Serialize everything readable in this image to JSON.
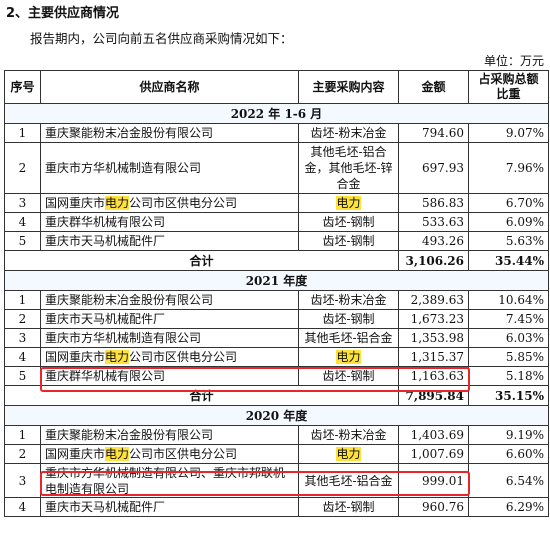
{
  "heading": "2、主要供应商情况",
  "intro": "报告期内，公司向前五名供应商采购情况如下：",
  "unit": "单位：万元",
  "headers": [
    "序号",
    "供应商名称",
    "主要采购内容",
    "金额",
    "占采购总额比重"
  ],
  "sections": [
    {
      "title": "2022 年 1-6 月",
      "rows": [
        {
          "no": "1",
          "name": "重庆聚能粉末冶金股份有限公司",
          "content": "齿坯-粉末冶金",
          "amount": "794.60",
          "ratio": "9.07%"
        },
        {
          "no": "2",
          "name": "重庆市方华机械制造有限公司",
          "content": "其他毛坯-铝合金，其他毛坯-锌合金",
          "amount": "697.93",
          "ratio": "7.96%"
        },
        {
          "no": "3",
          "name_parts": [
            "国网重庆市",
            "电力",
            "公司市区供电分公司"
          ],
          "content": "电力",
          "amount": "586.83",
          "ratio": "6.70%"
        },
        {
          "no": "4",
          "name": "重庆群华机械有限公司",
          "content": "齿坯-钢制",
          "amount": "533.63",
          "ratio": "6.09%"
        },
        {
          "no": "5",
          "name": "重庆市天马机械配件厂",
          "content": "齿坯-钢制",
          "amount": "493.26",
          "ratio": "5.63%"
        }
      ],
      "total": {
        "label": "合计",
        "amount": "3,106.26",
        "ratio": "35.44%"
      }
    },
    {
      "title": "2021 年度",
      "rows": [
        {
          "no": "1",
          "name": "重庆聚能粉末冶金股份有限公司",
          "content": "齿坯-粉末冶金",
          "amount": "2,389.63",
          "ratio": "10.64%"
        },
        {
          "no": "2",
          "name": "重庆市天马机械配件厂",
          "content": "齿坯-钢制",
          "amount": "1,673.23",
          "ratio": "7.45%"
        },
        {
          "no": "3",
          "name": "重庆市方华机械制造有限公司",
          "content": "其他毛坯-铝合金",
          "amount": "1,353.98",
          "ratio": "6.03%"
        },
        {
          "no": "4",
          "name_parts": [
            "国网重庆市",
            "电力",
            "公司市区供电分公司"
          ],
          "content": "电力",
          "amount": "1,315.37",
          "ratio": "5.85%"
        },
        {
          "no": "5",
          "name": "重庆群华机械有限公司",
          "content": "齿坯-钢制",
          "amount": "1,163.63",
          "ratio": "5.18%"
        }
      ],
      "total": {
        "label": "合计",
        "amount": "7,895.84",
        "ratio": "35.15%"
      }
    },
    {
      "title": "2020 年度",
      "rows": [
        {
          "no": "1",
          "name": "重庆聚能粉末冶金股份有限公司",
          "content": "齿坯-粉末冶金",
          "amount": "1,403.69",
          "ratio": "9.19%"
        },
        {
          "no": "2",
          "name_parts": [
            "国网重庆市",
            "电力",
            "公司市区供电分公司"
          ],
          "content": "电力",
          "amount": "1,007.69",
          "ratio": "6.60%"
        },
        {
          "no": "3",
          "name": "重庆市方华机械制造有限公司、重庆市邦联机电制造有限公司",
          "content": "其他毛坯-铝合金",
          "amount": "999.01",
          "ratio": "6.54%"
        },
        {
          "no": "4",
          "name": "重庆市天马机械配件厂",
          "content": "齿坯-钢制",
          "amount": "960.76",
          "ratio": "6.29%"
        }
      ]
    }
  ],
  "colors": {
    "highlight": "#ffe13b",
    "box": "#e8262b",
    "border": "#333333"
  }
}
